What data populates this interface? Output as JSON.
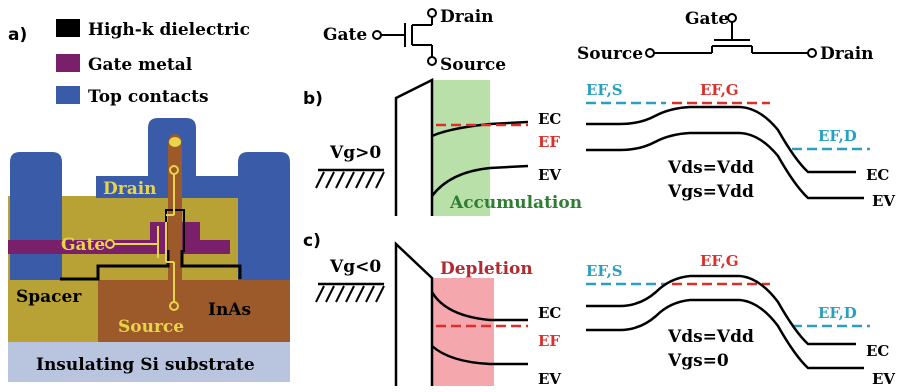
{
  "panel_a": {
    "letter": "a)",
    "legend": [
      {
        "label": "High-k dielectric",
        "color": "#000000"
      },
      {
        "label": "Gate metal",
        "color": "#7a1f6a"
      },
      {
        "label": "Top contacts",
        "color": "#3a5ca8"
      }
    ],
    "labels": {
      "drain": "Drain",
      "gate": "Gate",
      "source": "Source",
      "spacer": "Spacer",
      "inas": "InAs",
      "substrate": "Insulating Si substrate"
    },
    "colors": {
      "spacer": "#b8a235",
      "inas": "#9c5a2a",
      "substrate": "#b9c4de",
      "contact": "#3a5ca8",
      "gate_metal": "#7a1f6a",
      "circuit": "#e8d44a",
      "drain_text": "#e8d44a",
      "source_text": "#e8d44a"
    }
  },
  "symbols": {
    "vertical": {
      "gate": "Gate",
      "drain": "Drain",
      "source": "Source"
    },
    "horizontal": {
      "gate": "Gate",
      "source": "Source",
      "drain": "Drain"
    }
  },
  "panel_b": {
    "letter": "b)",
    "vg": "Vg>0",
    "region": "Accumulation",
    "region_color": "#b9e0a8",
    "region_text_color": "#2e7d32",
    "ec": "EC",
    "ef": "EF",
    "ev": "EV",
    "efs": "EF,S",
    "efg": "EF,G",
    "efd": "EF,D",
    "vds": "Vds=Vdd",
    "vgs": "Vgs=Vdd"
  },
  "panel_c": {
    "letter": "c)",
    "vg": "Vg<0",
    "region": "Depletion",
    "region_color": "#f4a8ae",
    "region_text_color": "#b02a30",
    "ec": "EC",
    "ef": "EF",
    "ev": "EV",
    "efs": "EF,S",
    "efg": "EF,G",
    "efd": "EF,D",
    "vds": "Vds=Vdd",
    "vgs": "Vgs=0"
  },
  "colors": {
    "fermi_red": "#d9302b",
    "fermi_cyan": "#2a9fc0",
    "band_black": "#000000"
  }
}
